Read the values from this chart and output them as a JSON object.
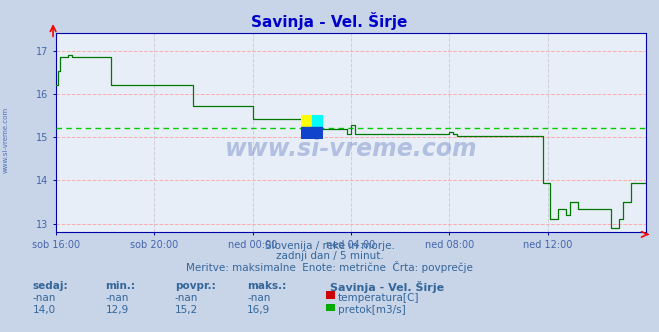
{
  "title": "Savinja - Vel. Širje",
  "title_color": "#0000cc",
  "bg_color": "#c8d4e8",
  "plot_bg_color": "#e8eef8",
  "grid_color_h": "#ffaaaa",
  "grid_color_v": "#ccccdd",
  "tick_color": "#0000aa",
  "tick_label_color": "#4466aa",
  "text_color": "#336699",
  "ylim": [
    12.8,
    17.4
  ],
  "yticks": [
    13,
    14,
    15,
    16,
    17
  ],
  "xlim": [
    0,
    288
  ],
  "xtick_positions": [
    0,
    48,
    96,
    144,
    192,
    240
  ],
  "xtick_labels": [
    "sob 16:00",
    "sob 20:00",
    "ned 00:00",
    "ned 04:00",
    "ned 08:00",
    "ned 12:00"
  ],
  "avg_line_value": 15.2,
  "avg_line_color": "#00cc00",
  "line_color": "#007700",
  "axis_color": "#0000aa",
  "watermark": "www.si-vreme.com",
  "watermark_color": "#3355aa",
  "sub_text1": "Slovenija / reke in morje.",
  "sub_text2": "zadnji dan / 5 minut.",
  "sub_text3": "Meritve: maksimalne  Enote: metrične  Črta: povprečje",
  "legend_title": "Savinja - Vel. Širje",
  "col_headers": [
    "sedaj:",
    "min.:",
    "povpr.:",
    "maks.:"
  ],
  "col_values_temp": [
    "-nan",
    "-nan",
    "-nan",
    "-nan"
  ],
  "col_values_flow": [
    "14,0",
    "12,9",
    "15,2",
    "16,9"
  ],
  "legend_temp_color": "#cc0000",
  "legend_flow_color": "#00aa00",
  "legend_temp_label": "temperatura[C]",
  "legend_flow_label": "pretok[m3/s]"
}
